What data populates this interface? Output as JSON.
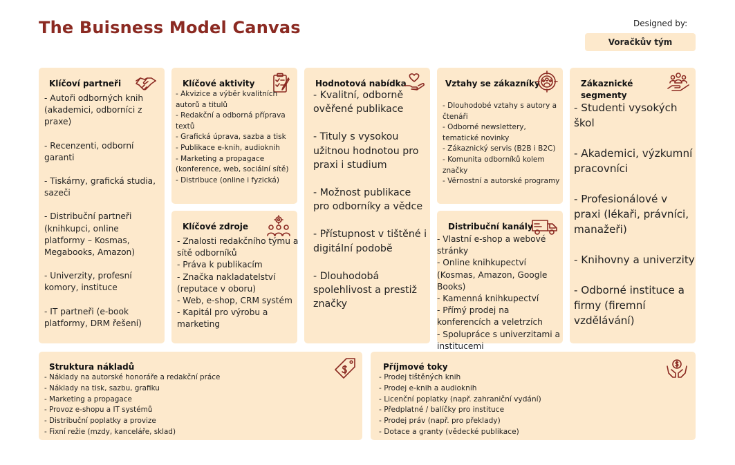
{
  "header": {
    "title": "The Buisness Model Canvas",
    "designed_by_label": "Designed by:",
    "designed_by_value": "Voračkův tým"
  },
  "colors": {
    "accent": "#8b2a22",
    "card": "#fde9cc"
  },
  "blocks": {
    "key_partners": {
      "title": "Klíčoví partneři",
      "icon": "handshake-icon",
      "items": [
        "- Autoři odborných knih (akademici, odborníci z praxe)",
        " - Recenzenti, odborní garanti",
        " - Tiskárny, grafická studia, sazeči",
        " - Distribuční partneři (knihkupci, online platformy – Kosmas, Megabooks, Amazon)",
        " - Univerzity, profesní komory, instituce",
        " - IT partneři (e-book platformy, DRM řešení)"
      ]
    },
    "key_activities": {
      "title": "Klíčové aktivity",
      "icon": "clipboard-icon",
      "items": [
        "- Akvizice a výběr kvalitních autorů a titulů",
        " - Redakční a odborná příprava textů",
        " - Grafická úprava, sazba a tisk",
        " - Publikace e-knih, audioknih",
        " - Marketing a propagace (konference, web, sociální sítě)",
        " - Distribuce (online i fyzická)"
      ]
    },
    "key_resources": {
      "title": "Klíčové zdroje",
      "icon": "team-gear-icon",
      "items": [
        "- Znalosti redakčního týmu a sítě odborníků",
        " - Práva k publikacím",
        " - Značka nakladatelství (reputace v oboru)",
        " - Web, e-shop, CRM systém",
        " - Kapitál pro výrobu a marketing"
      ]
    },
    "value_proposition": {
      "title": "Hodnotová nabídka",
      "icon": "heart-hand-icon",
      "items": [
        "- Kvalitní, odborně ověřené publikace",
        " - Tituly s vysokou užitnou hodnotou pro praxi i studium",
        " - Možnost publikace pro odborníky a vědce",
        " - Přístupnost v tištěné i digitální podobě",
        " - Dlouhodobá spolehlivost a prestiž značky"
      ]
    },
    "customer_relationships": {
      "title": "Vztahy se zákazníky",
      "icon": "target-people-icon",
      "items": [
        "- Dlouhodobé vztahy s autory a čtenáři",
        " - Odborné newslettery, tematické novinky",
        " - Zákaznický servis (B2B i B2C)",
        " - Komunita odborníků kolem značky",
        " - Věrnostní a autorské programy"
      ]
    },
    "channels": {
      "title": "Distribuční kanály",
      "icon": "truck-icon",
      "items": [
        "- Vlastní e-shop a webové stránky",
        " - Online knihkupectví (Kosmas, Amazon, Google Books)",
        " - Kamenná knihkupectví",
        " - Přímý prodej na konferencích a veletrzích",
        " - Spolupráce s univerzitami a institucemi"
      ]
    },
    "customer_segments": {
      "title": "Zákaznické segmenty",
      "icon": "people-hand-icon",
      "items": [
        "- Studenti vysokých škol",
        " - Akademici, výzkumní pracovníci",
        " - Profesionálové v praxi (lékaři, právníci, manažeři)",
        " - Knihovny a univerzity",
        " - Odborné instituce a firmy (firemní vzdělávání)"
      ]
    },
    "cost_structure": {
      "title": "Struktura nákladů",
      "icon": "price-tag-icon",
      "items": [
        "- Náklady na autorské honoráře a redakční práce",
        " - Náklady na tisk, sazbu, grafiku",
        " - Marketing a propagace",
        " - Provoz e-shopu a IT systémů",
        " - Distribuční poplatky a provize",
        " - Fixní režie (mzdy, kanceláře, sklad)"
      ]
    },
    "revenue_streams": {
      "title": "Příjmové toky",
      "icon": "money-hands-icon",
      "items": [
        "- Prodej tištěných knih",
        " - Prodej e-knih a audioknih",
        " - Licenční poplatky (např. zahraniční vydání)",
        " - Předplatné / balíčky pro instituce",
        " - Prodej práv (např. pro překlady)",
        " - Dotace a granty (vědecké publikace)"
      ]
    }
  }
}
